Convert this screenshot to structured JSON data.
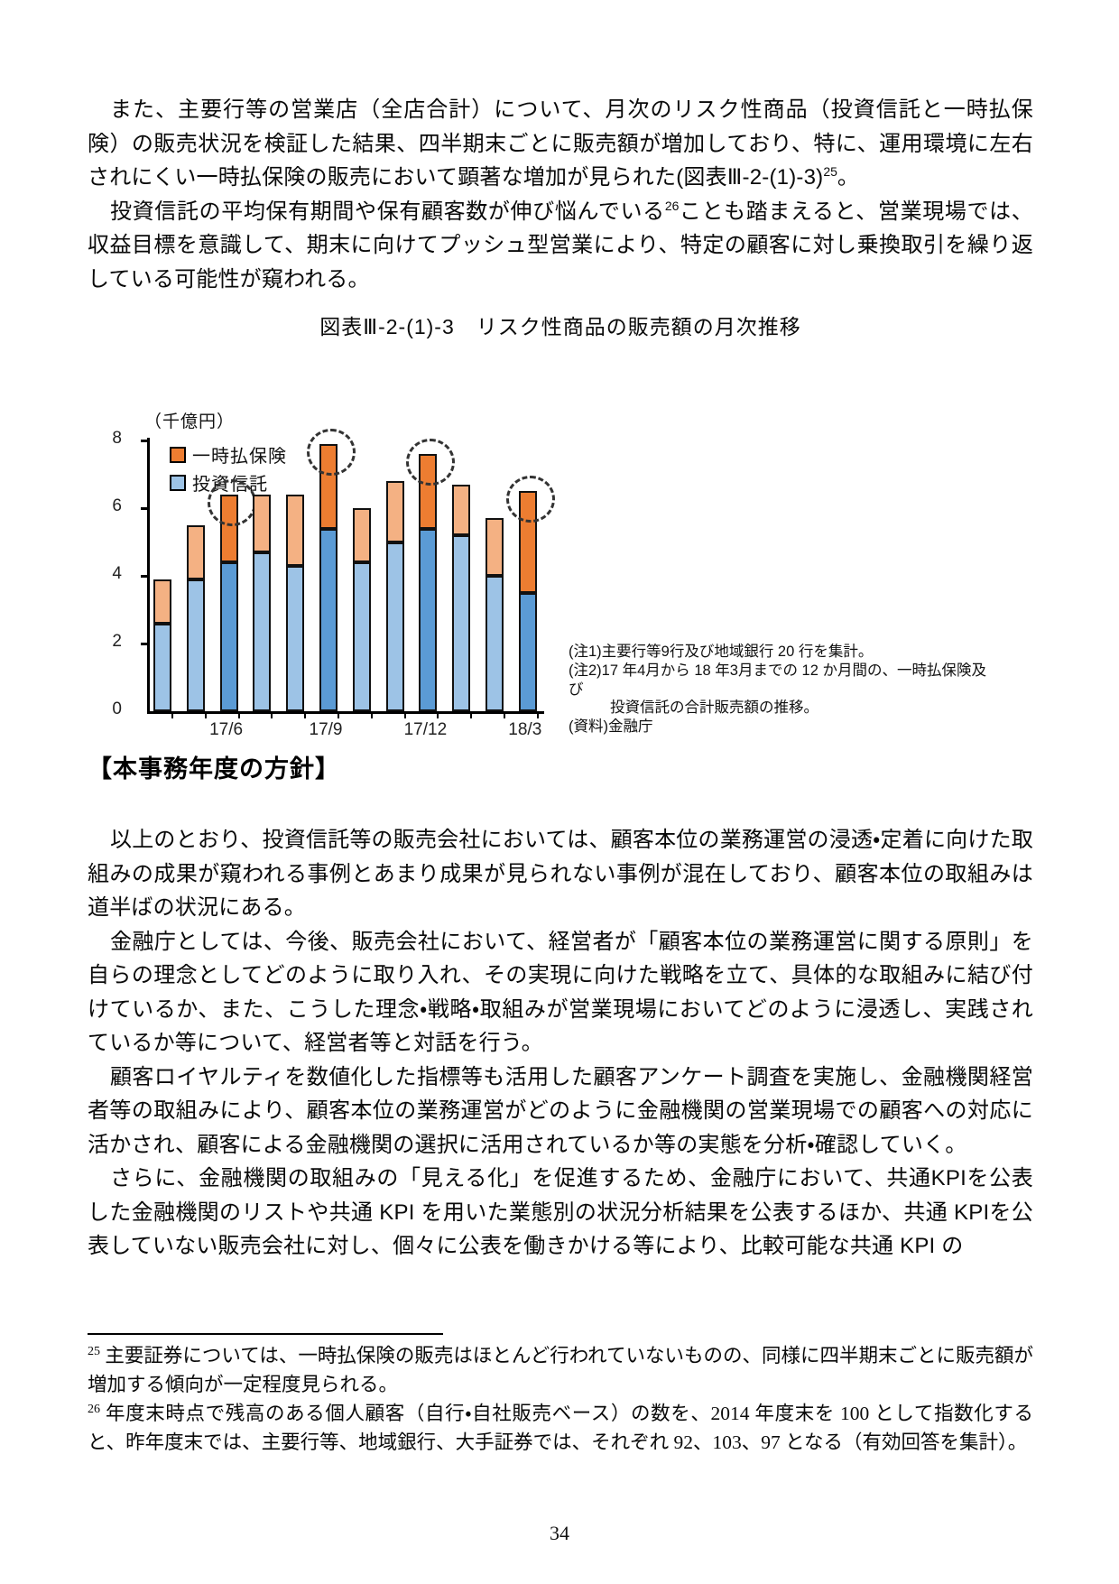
{
  "document": {
    "page_number": "34",
    "intro": {
      "p1": {
        "text": "また、主要行等の営業店（全店合計）について、月次のリスク性商品（投資信託と一時払保険）の販売状況を検証した結果、四半期末ごとに販売額が増加しており、特に、運用環境に左右されにくい一時払保険の販売において顕著な増加が見られた(図表Ⅲ-2-(1)-3)",
        "ref": "25",
        "tail": "。"
      },
      "p2": {
        "text": "投資信託の平均保有期間や保有顧客数が伸び悩んでいる",
        "ref": "26",
        "tail": "ことも踏まえると、営業現場では、収益目標を意識して、期末に向けてプッシュ型営業により、特定の顧客に対し乗換取引を繰り返している可能性が窺われる。"
      }
    },
    "section_heading": "【本事務年度の方針】",
    "policy": {
      "p3": "以上のとおり、投資信託等の販売会社においては、顧客本位の業務運営の浸透・定着に向けた取組みの成果が窺われる事例とあまり成果が見られない事例が混在しており、顧客本位の取組みは道半ばの状況にある。",
      "p4": "金融庁としては、今後、販売会社において、経営者が「顧客本位の業務運営に関する原則」を自らの理念としてどのように取り入れ、その実現に向けた戦略を立て、具体的な取組みに結び付けているか、また、こうした理念・戦略・取組みが営業現場においてどのように浸透し、実践されているか等について、経営者等と対話を行う。",
      "p5": "顧客ロイヤルティを数値化した指標等も活用した顧客アンケート調査を実施し、金融機関経営者等の取組みにより、顧客本位の業務運営がどのように金融機関の営業現場での顧客への対応に活かされ、顧客による金融機関の選択に活用されているか等の実態を分析・確認していく。",
      "p6": "さらに、金融機関の取組みの「見える化」を促進するため、金融庁において、共通KPIを公表した金融機関のリストや共通 KPI を用いた業態別の状況分析結果を公表するほか、共通 KPIを公表していない販売会社に対し、個々に公表を働きかける等により、比較可能な共通 KPI の"
    },
    "footnotes": [
      {
        "ref": "25",
        "text": "主要証券については、一時払保険の販売はほとんど行われていないものの、同様に四半期末ごとに販売額が増加する傾向が一定程度見られる。"
      },
      {
        "ref": "26",
        "text": "年度末時点で残高のある個人顧客（自行・自社販売ベース）の数を、2014 年度末を 100 として指数化すると、昨年度末では、主要行等、地域銀行、大手証券では、それぞれ 92、103、97 となる（有効回答を集計）。"
      }
    ]
  },
  "chart_data": {
    "type": "bar",
    "stacked": true,
    "title": "図表Ⅲ-2-(1)-3　リスク性商品の販売額の月次推移",
    "unit_label": "（千億円）",
    "categories": [
      "17/4",
      "17/5",
      "17/6",
      "17/7",
      "17/8",
      "17/9",
      "17/10",
      "17/11",
      "17/12",
      "18/1",
      "18/2",
      "18/3"
    ],
    "series": [
      {
        "name": "投資信託",
        "values": [
          2.6,
          3.9,
          4.4,
          4.7,
          4.3,
          5.4,
          4.4,
          5.0,
          5.4,
          5.2,
          4.0,
          3.5
        ],
        "color_light": "#9DC3E6",
        "color_dark": "#5B9BD5"
      },
      {
        "name": "一時払保険",
        "values": [
          1.3,
          1.6,
          2.0,
          1.7,
          2.1,
          2.5,
          1.6,
          1.8,
          2.2,
          1.5,
          1.7,
          3.0
        ],
        "color_light": "#F4B183",
        "color_dark": "#ED7D31"
      }
    ],
    "totals": [
      3.9,
      5.5,
      6.4,
      6.4,
      6.4,
      7.9,
      6.0,
      6.8,
      7.6,
      6.7,
      5.7,
      6.5
    ],
    "quarter_end_indices": [
      2,
      5,
      8,
      11
    ],
    "circled_indices": [
      2,
      5,
      8,
      11
    ],
    "ylim": [
      0,
      8
    ],
    "yticks": [
      0,
      2,
      4,
      6,
      8
    ],
    "x_tick_labels": [
      "17/6",
      "17/9",
      "17/12",
      "18/3"
    ],
    "x_tick_indices": [
      2,
      5,
      8,
      11
    ],
    "legend": [
      {
        "label": "一時払保険",
        "color": "#ED7D31"
      },
      {
        "label": "投資信託",
        "color": "#9DC3E6"
      }
    ],
    "legend_position": "top-left-inside",
    "grid": false,
    "notes": [
      "(注1)主要行等9行及び地域銀行 20 行を集計。",
      "(注2)17 年4月から 18 年3月までの 12 か月間の、一時払保険及び",
      "投資信託の合計販売額の推移。",
      "(資料)金融庁"
    ]
  }
}
